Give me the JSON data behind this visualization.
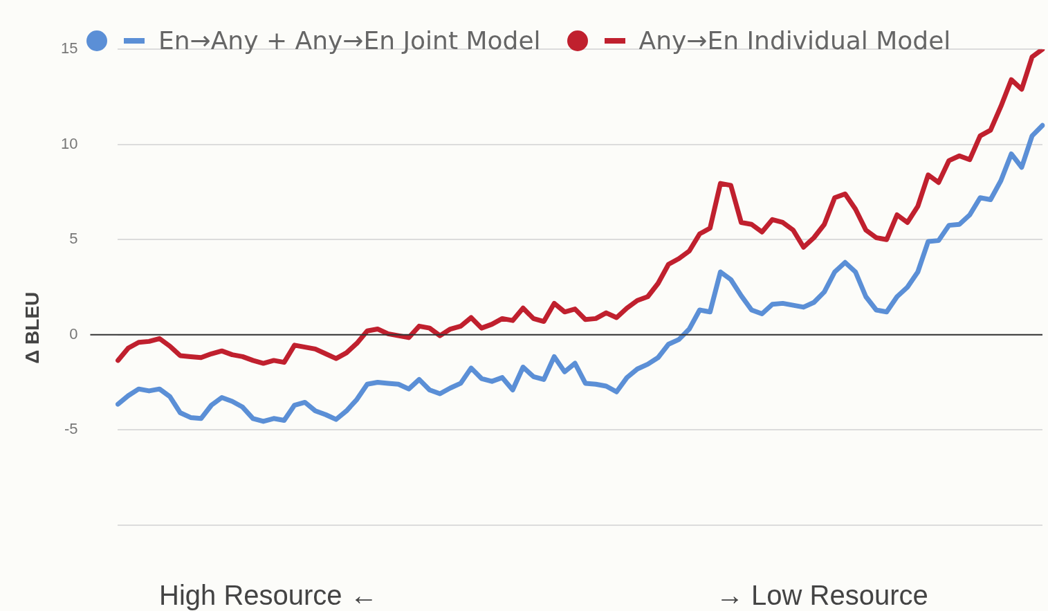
{
  "chart_data": {
    "type": "line",
    "ylabel": "Δ BLEU",
    "categories": [
      null,
      null,
      null,
      null,
      null,
      null,
      null,
      null,
      null,
      null,
      null,
      null,
      null,
      null,
      null,
      null,
      null,
      null,
      null,
      null,
      null,
      null,
      null,
      null,
      null,
      null,
      null,
      null,
      null,
      null,
      null,
      null,
      null,
      null,
      null,
      null,
      null,
      null,
      null,
      null,
      null,
      null,
      null,
      null,
      null,
      null,
      null,
      null,
      null,
      null,
      null,
      null,
      null,
      null,
      null,
      null,
      null,
      null,
      null,
      null,
      null,
      null,
      null,
      null,
      null,
      null,
      null,
      null,
      null,
      null,
      null,
      null,
      null,
      null,
      null,
      null,
      null,
      null,
      null,
      null,
      null,
      null,
      null,
      null,
      null,
      null,
      null,
      null,
      null,
      null
    ],
    "series": [
      {
        "name": "En→Any + Any→En Joint Model",
        "color": "#5b8fd6",
        "values": [
          -3.65,
          -3.2,
          -2.85,
          -2.95,
          -2.85,
          -3.25,
          -4.1,
          -4.35,
          -4.4,
          -3.7,
          -3.3,
          -3.5,
          -3.8,
          -4.4,
          -4.55,
          -4.4,
          -4.5,
          -3.7,
          -3.55,
          -4.0,
          -4.2,
          -4.45,
          -4.0,
          -3.4,
          -2.6,
          -2.5,
          -2.55,
          -2.6,
          -2.85,
          -2.35,
          -2.9,
          -3.1,
          -2.8,
          -2.55,
          -1.75,
          -2.3,
          -2.45,
          -2.25,
          -2.9,
          -1.7,
          -2.2,
          -2.35,
          -1.15,
          -1.95,
          -1.5,
          -2.55,
          -2.6,
          -2.7,
          -3.0,
          -2.25,
          -1.8,
          -1.55,
          -1.2,
          -0.5,
          -0.25,
          0.3,
          1.3,
          1.2,
          3.3,
          2.9,
          2.05,
          1.3,
          1.1,
          1.6,
          1.65,
          1.55,
          1.45,
          1.7,
          2.25,
          3.3,
          3.8,
          3.3,
          2.0,
          1.3,
          1.2,
          2.0,
          2.5,
          3.3,
          4.9,
          4.95,
          5.75,
          5.8,
          6.3,
          7.2,
          7.1,
          8.1,
          9.5,
          8.8,
          10.45,
          11.0
        ]
      },
      {
        "name": "Any→En Individual Model",
        "color": "#c0202e",
        "values": [
          -1.35,
          -0.7,
          -0.4,
          -0.35,
          -0.2,
          -0.6,
          -1.1,
          -1.15,
          -1.2,
          -1.0,
          -0.85,
          -1.05,
          -1.15,
          -1.35,
          -1.5,
          -1.35,
          -1.45,
          -0.55,
          -0.65,
          -0.75,
          -1.0,
          -1.25,
          -0.95,
          -0.45,
          0.2,
          0.3,
          0.05,
          -0.05,
          -0.15,
          0.45,
          0.35,
          -0.05,
          0.3,
          0.45,
          0.9,
          0.35,
          0.55,
          0.85,
          0.75,
          1.4,
          0.85,
          0.7,
          1.65,
          1.2,
          1.35,
          0.8,
          0.85,
          1.15,
          0.9,
          1.4,
          1.8,
          2.0,
          2.7,
          3.7,
          4.0,
          4.4,
          5.3,
          5.6,
          7.95,
          7.85,
          5.9,
          5.8,
          5.4,
          6.05,
          5.9,
          5.5,
          4.6,
          5.1,
          5.8,
          7.2,
          7.4,
          6.6,
          5.5,
          5.1,
          5.0,
          6.3,
          5.9,
          6.75,
          8.4,
          8.0,
          9.15,
          9.4,
          9.2,
          10.45,
          10.75,
          12.0,
          13.4,
          12.9,
          14.6,
          15.0
        ]
      }
    ],
    "ylim": [
      -10,
      15
    ],
    "yticks": [
      {
        "value": -10,
        "label": null
      },
      -5,
      0,
      5,
      10,
      15
    ],
    "grid": "y",
    "legend": "top left",
    "tick_labels": "y",
    "ref_lines": [
      {
        "axis": "y",
        "value": 0,
        "color": "#333333"
      }
    ],
    "annotations": [
      "High Resource ←",
      "→ Low Resource"
    ]
  }
}
